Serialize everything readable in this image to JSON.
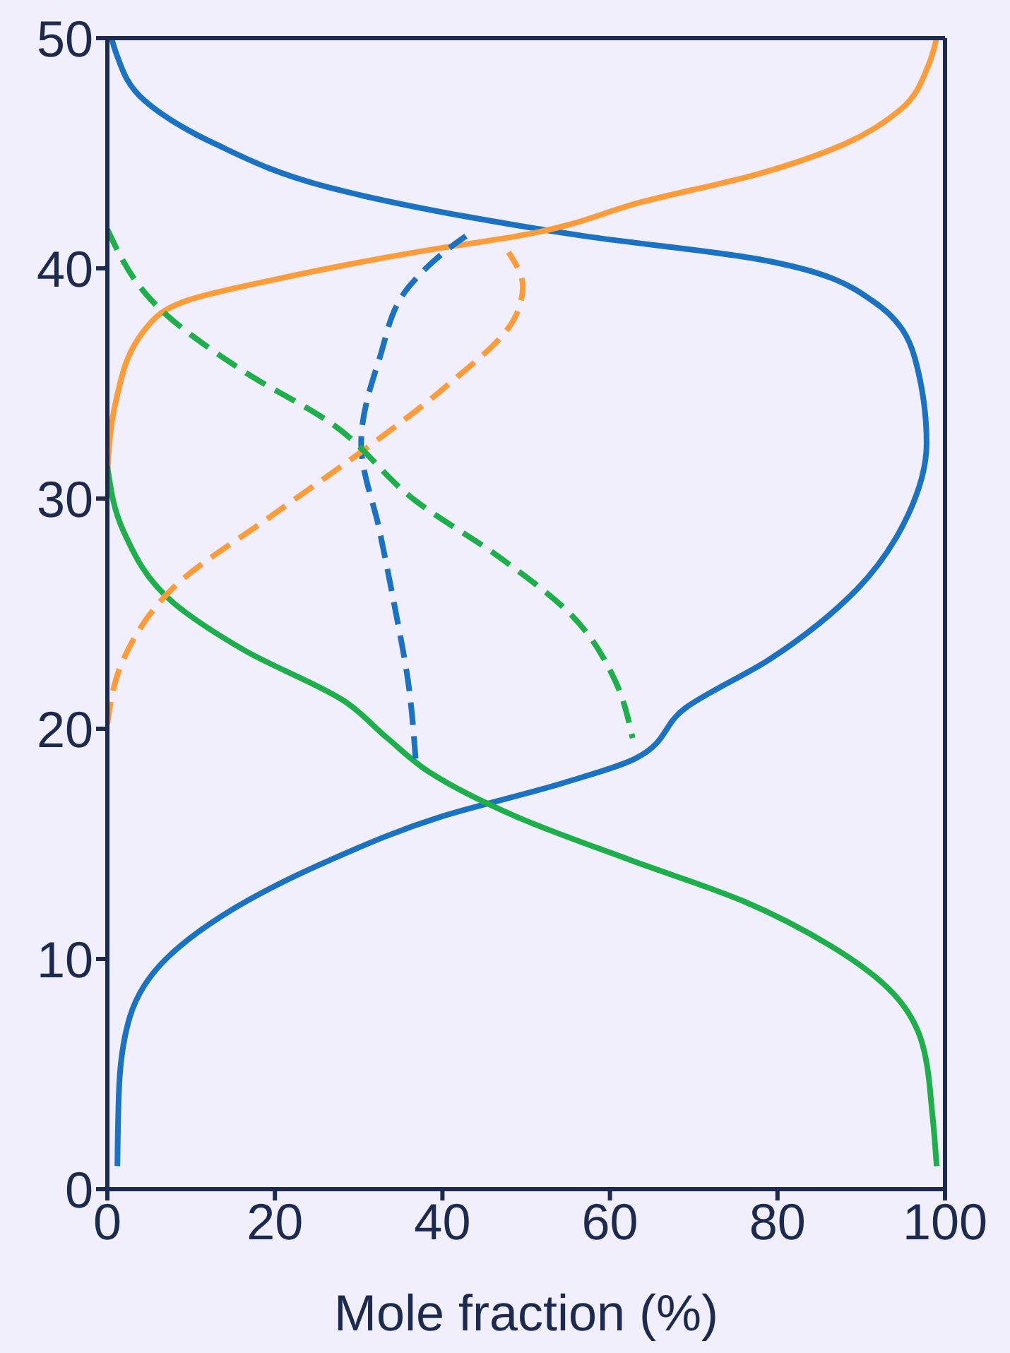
{
  "chart_data": {
    "type": "line",
    "xlabel": "Mole fraction (%)",
    "xlim": [
      0,
      100
    ],
    "xticks": [
      0,
      20,
      40,
      60,
      80,
      100
    ],
    "ylim": [
      0,
      50
    ],
    "yticks": [
      0,
      10,
      20,
      30,
      40,
      50
    ],
    "marker": "none",
    "series": [
      {
        "color": "#1a72c4",
        "line_style": "solid",
        "x": [
          1.2,
          1.4,
          2.7,
          7,
          13.8,
          26.6,
          40,
          54,
          63,
          69,
          79,
          89.6,
          95.6,
          97.8,
          96.4,
          91.3,
          77.7,
          57,
          43.6,
          26.6,
          12.9,
          4.4,
          1,
          0.5
        ],
        "values": [
          1,
          4.4,
          7.5,
          10,
          11.9,
          14.3,
          16.2,
          17.6,
          18.7,
          20.9,
          23,
          26.1,
          29.3,
          32.4,
          36.1,
          38.6,
          40.4,
          41.4,
          42.2,
          43.5,
          45.4,
          47.3,
          49.4,
          50
        ]
      },
      {
        "color": "#ff9c3a",
        "line_style": "solid",
        "x": [
          0,
          1,
          4.4,
          9.5,
          19.8,
          36.8,
          50.4,
          64,
          77.7,
          88,
          94.7,
          98,
          99
        ],
        "values": [
          31.1,
          34.2,
          37.3,
          38.6,
          39.5,
          40.7,
          41.5,
          42.9,
          44.1,
          45.4,
          46.9,
          48.8,
          50
        ]
      },
      {
        "color": "#1db04a",
        "line_style": "solid",
        "x": [
          0,
          1.9,
          7.8,
          16.4,
          28.3,
          33.4,
          38.5,
          48.7,
          62.4,
          76,
          86.2,
          93,
          97.3,
          98.5,
          99
        ],
        "values": [
          31.4,
          28.6,
          25.5,
          23.4,
          21.2,
          19.6,
          18.1,
          16.2,
          14.3,
          12.5,
          10.6,
          8.8,
          6.3,
          3.2,
          1
        ]
      },
      {
        "color": "#1a72c4",
        "line_style": "dashed",
        "x": [
          36.8,
          36,
          34.2,
          32.5,
          30.3,
          32.5,
          36,
          40.2,
          42.8
        ],
        "values": [
          18.7,
          21.8,
          25.5,
          28.6,
          32.4,
          36.1,
          39.2,
          40.7,
          41.4
        ]
      },
      {
        "color": "#ff9c3a",
        "line_style": "dashed",
        "x": [
          0,
          1.9,
          7.8,
          19.8,
          31.7,
          40.2,
          48.7,
          49.6,
          47.9
        ],
        "values": [
          20.2,
          23,
          26.1,
          29.3,
          32.4,
          34.8,
          37.9,
          39.2,
          40.7
        ]
      },
      {
        "color": "#1db04a",
        "line_style": "dashed",
        "x": [
          0,
          6.1,
          16.4,
          26.6,
          36.8,
          47,
          55.5,
          60.6,
          62.7
        ],
        "values": [
          41.7,
          38.3,
          35.5,
          33.3,
          29.9,
          27.4,
          24.9,
          22.1,
          19.6
        ]
      }
    ]
  }
}
